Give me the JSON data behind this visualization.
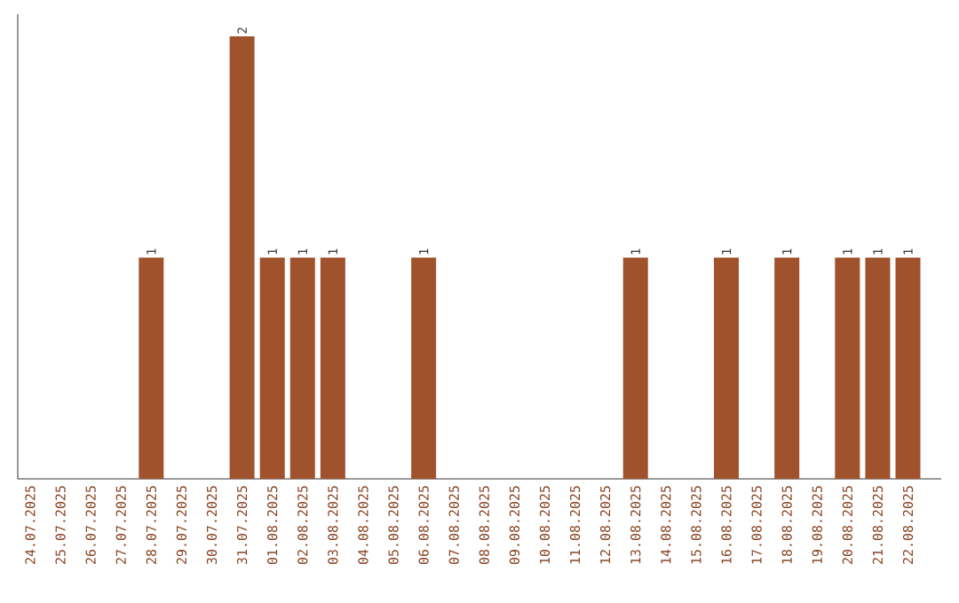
{
  "chart_data": {
    "type": "bar",
    "categories": [
      "24.07.2025",
      "25.07.2025",
      "26.07.2025",
      "27.07.2025",
      "28.07.2025",
      "29.07.2025",
      "30.07.2025",
      "31.07.2025",
      "01.08.2025",
      "02.08.2025",
      "03.08.2025",
      "04.08.2025",
      "05.08.2025",
      "06.08.2025",
      "07.08.2025",
      "08.08.2025",
      "09.08.2025",
      "10.08.2025",
      "11.08.2025",
      "12.08.2025",
      "13.08.2025",
      "14.08.2025",
      "15.08.2025",
      "16.08.2025",
      "17.08.2025",
      "18.08.2025",
      "19.08.2025",
      "20.08.2025",
      "21.08.2025",
      "22.08.2025"
    ],
    "values": [
      0,
      0,
      0,
      0,
      1,
      0,
      0,
      2,
      1,
      1,
      1,
      0,
      0,
      1,
      0,
      0,
      0,
      0,
      0,
      0,
      1,
      0,
      0,
      1,
      0,
      1,
      0,
      1,
      1,
      1
    ],
    "value_labels": [
      null,
      null,
      null,
      null,
      "1",
      null,
      null,
      "2",
      "1",
      "1",
      "1",
      null,
      null,
      "1",
      null,
      null,
      null,
      null,
      null,
      null,
      "1",
      null,
      null,
      "1",
      null,
      "1",
      null,
      "1",
      "1",
      "1"
    ],
    "color": "#a0522d",
    "tick_labels": "x"
  }
}
